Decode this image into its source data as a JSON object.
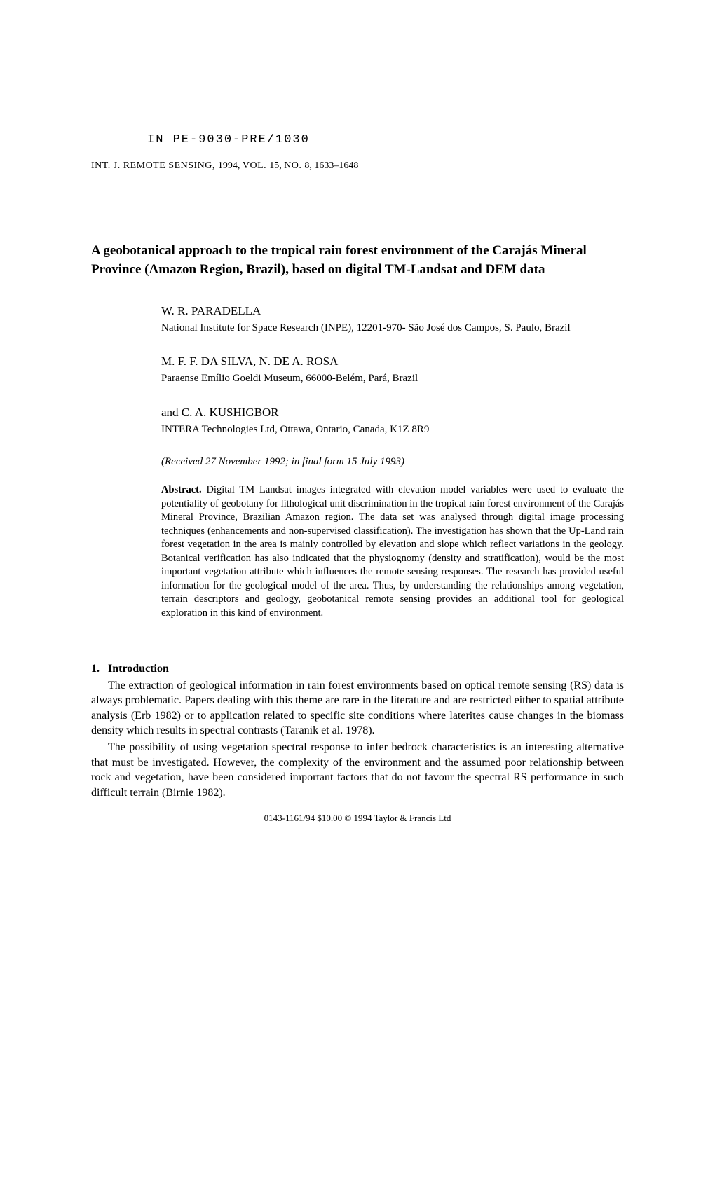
{
  "doc_number": "IN PE-9030-PRE/1030",
  "journal": {
    "prefix": "INT. J. REMOTE SENSING, ",
    "year": "1994, ",
    "vol_label": "VOL. ",
    "vol": "15, ",
    "no_label": "NO. ",
    "no": "8, 1633–1648"
  },
  "title": "A geobotanical approach to the tropical rain forest environment of the Carajás Mineral Province (Amazon Region, Brazil), based on digital TM-Landsat and DEM data",
  "authors": [
    {
      "name": "W. R. PARADELLA",
      "aff": "National Institute for Space Research (INPE), 12201-970- São José dos Campos, S. Paulo, Brazil"
    },
    {
      "name": "M. F. F. DA SILVA, N. DE A. ROSA",
      "aff": "Paraense Emílio Goeldi Museum, 66000-Belém, Pará, Brazil"
    },
    {
      "name": "and C. A. KUSHIGBOR",
      "aff": "INTERA Technologies Ltd, Ottawa, Ontario, Canada, K1Z 8R9"
    }
  ],
  "received": "(Received 27 November 1992; in final form 15 July 1993)",
  "abstract_lead": "Abstract.",
  "abstract_body": "  Digital TM Landsat images integrated with elevation model variables were used to evaluate the potentiality of geobotany for lithological unit discrimination in the tropical rain forest environment of the Carajás Mineral Province, Brazilian Amazon region. The data set was analysed through digital image processing techniques (enhancements and non-supervised classification). The investigation has shown that the Up-Land rain forest vegetation in the area is mainly controlled by elevation and slope which reflect variations in the geology. Botanical verification has also indicated that the physiognomy (density and stratification), would be the most important vegetation attribute which influences the remote sensing responses. The research has provided useful information for the geological model of the area. Thus, by understanding the relationships among vegetation, terrain descriptors and geology, geobotanical remote sensing provides an additional tool for geological exploration in this kind of environment.",
  "section": {
    "num": "1.",
    "title": "Introduction"
  },
  "para1": "The extraction of geological information in rain forest environments based on optical remote sensing (RS) data is always problematic. Papers dealing with this theme are rare in the literature and are restricted either to spatial attribute analysis (Erb 1982) or to application related to specific site conditions where laterites cause changes in the biomass density which results in spectral contrasts (Taranik et al. 1978).",
  "para2": "The possibility of using vegetation spectral response to infer bedrock characteristics is an interesting alternative that must be investigated. However, the complexity of the environment and the assumed poor relationship between rock and vegetation, have been considered important factors that do not favour the spectral RS performance in such difficult terrain (Birnie 1982).",
  "footer": "0143-1161/94 $10.00 © 1994 Taylor & Francis Ltd"
}
